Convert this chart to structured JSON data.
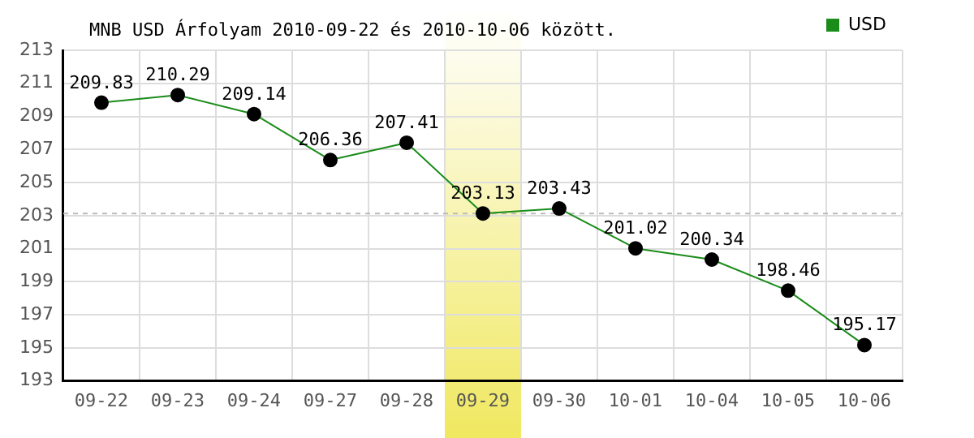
{
  "chart_data": {
    "type": "line",
    "title": "MNB USD Árfolyam 2010-09-22 és 2010-10-06 között.",
    "categories": [
      "09-22",
      "09-23",
      "09-24",
      "09-27",
      "09-28",
      "09-29",
      "09-30",
      "10-01",
      "10-04",
      "10-05",
      "10-06"
    ],
    "series": [
      {
        "name": "USD",
        "color": "#1a8c1a",
        "values": [
          209.83,
          210.29,
          209.14,
          206.36,
          207.41,
          203.13,
          203.43,
          201.02,
          200.34,
          198.46,
          195.17
        ]
      }
    ],
    "ylim": [
      193,
      213
    ],
    "yticks": [
      193,
      195,
      197,
      199,
      201,
      203,
      205,
      207,
      209,
      211,
      213
    ],
    "ref_lines": [
      {
        "axis": "y",
        "value": 203.13,
        "color": "#bbbbbb",
        "line_style": "dashed"
      }
    ],
    "bands": [
      {
        "axis": "x",
        "from": "09-29",
        "to": "09-29",
        "color": "#f0e860"
      }
    ],
    "grid": true,
    "legend": "top right",
    "marker": "circle",
    "line_style": "solid",
    "data_labels": true
  }
}
